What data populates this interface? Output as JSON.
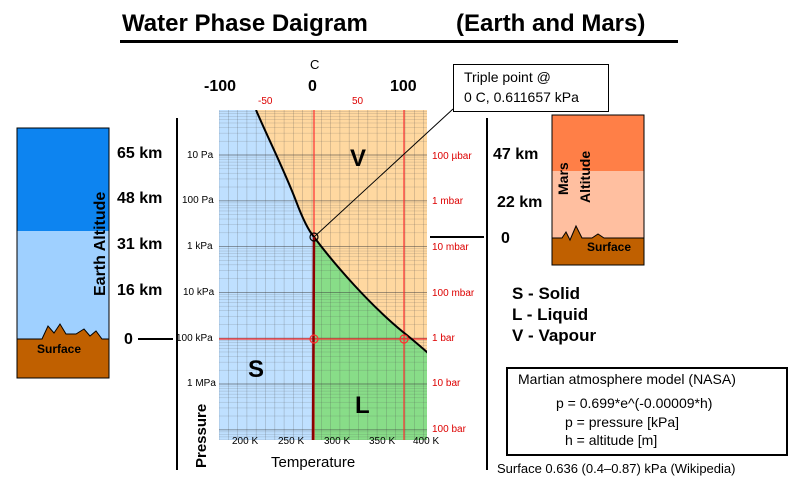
{
  "title": {
    "main": "Water Phase Daigram",
    "sub": "(Earth and Mars)"
  },
  "celsius_axis": {
    "label": "C",
    "major_ticks": [
      "-100",
      "0",
      "100"
    ],
    "minor_ticks": [
      "-50",
      "50"
    ]
  },
  "triple_point": {
    "line1": "Triple point @",
    "line2": "0 C, 0.611657 kPa"
  },
  "earth": {
    "axis_label": "Earth Altitude",
    "altitudes": [
      "65 km",
      "48 km",
      "31 km",
      "16 km",
      "0"
    ],
    "surface_label": "Surface",
    "colors": {
      "upper": "#0d84f0",
      "lower": "#9fd0ff",
      "surface": "#c06000"
    }
  },
  "mars": {
    "axis_label_1": "Mars",
    "axis_label_2": "Altitude",
    "altitudes": [
      "47 km",
      "22 km",
      "0"
    ],
    "surface_label": "Surface",
    "colors": {
      "upper": "#ff7f47",
      "lower": "#ffbfa0",
      "surface": "#c06000"
    }
  },
  "pressure_left": {
    "label": "Pressure",
    "ticks": [
      "10 Pa",
      "100 Pa",
      "1 kPa",
      "10 kPa",
      "100 kPa",
      "1 MPa"
    ]
  },
  "pressure_right": {
    "ticks": [
      "100 µbar",
      "1 mbar",
      "10 mbar",
      "100 mbar",
      "1 bar",
      "10 bar",
      "100 bar"
    ]
  },
  "temperature_axis": {
    "label": "Temperature",
    "ticks": [
      "200 K",
      "250 K",
      "300 K",
      "350 K",
      "400 K"
    ]
  },
  "regions": {
    "solid": "S",
    "liquid": "L",
    "vapour": "V",
    "colors": {
      "solid": "#bfe0ff",
      "liquid": "#88dd88",
      "vapour": "#ffd8a0",
      "grid_red": "#ff3030",
      "curve": "#000000"
    }
  },
  "legend": {
    "items": [
      "S - Solid",
      "L - Liquid",
      "V - Vapour"
    ]
  },
  "model_box": {
    "title": "Martian atmosphere model (NASA)",
    "formula": "p = 0.699*e^(-0.00009*h)",
    "line_p": "p = pressure [kPa]",
    "line_h": "h = altitude [m]"
  },
  "surface_note": "Surface 0.636 (0.4–0.87) kPa (Wikipedia)"
}
